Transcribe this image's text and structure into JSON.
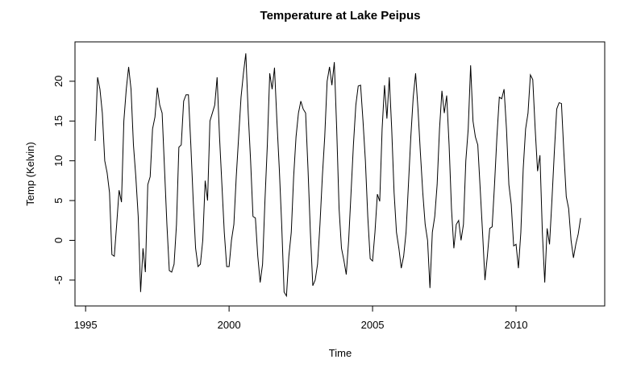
{
  "chart_data": {
    "type": "line",
    "title": "Temperature at Lake Peipus",
    "x_label": "Time",
    "y_label": "Temp (Kelvin)",
    "x": [
      1995.333,
      1995.417,
      1995.5,
      1995.583,
      1995.667,
      1995.75,
      1995.833,
      1995.917,
      1996,
      1996.083,
      1996.167,
      1996.25,
      1996.333,
      1996.417,
      1996.5,
      1996.583,
      1996.667,
      1996.75,
      1996.833,
      1996.917,
      1997,
      1997.083,
      1997.167,
      1997.25,
      1997.333,
      1997.417,
      1997.5,
      1997.583,
      1997.667,
      1997.75,
      1997.833,
      1997.917,
      1998,
      1998.083,
      1998.167,
      1998.25,
      1998.333,
      1998.417,
      1998.5,
      1998.583,
      1998.667,
      1998.75,
      1998.833,
      1998.917,
      1999,
      1999.083,
      1999.167,
      1999.25,
      1999.333,
      1999.417,
      1999.5,
      1999.583,
      1999.667,
      1999.75,
      1999.833,
      1999.917,
      2000,
      2000.083,
      2000.167,
      2000.25,
      2000.333,
      2000.417,
      2000.5,
      2000.583,
      2000.667,
      2000.75,
      2000.833,
      2000.917,
      2001,
      2001.083,
      2001.167,
      2001.25,
      2001.333,
      2001.417,
      2001.5,
      2001.583,
      2001.667,
      2001.75,
      2001.833,
      2001.917,
      2002,
      2002.083,
      2002.167,
      2002.25,
      2002.333,
      2002.417,
      2002.5,
      2002.583,
      2002.667,
      2002.75,
      2002.833,
      2002.917,
      2003,
      2003.083,
      2003.167,
      2003.25,
      2003.333,
      2003.417,
      2003.5,
      2003.583,
      2003.667,
      2003.75,
      2003.833,
      2003.917,
      2004,
      2004.083,
      2004.167,
      2004.25,
      2004.333,
      2004.417,
      2004.5,
      2004.583,
      2004.667,
      2004.75,
      2004.833,
      2004.917,
      2005,
      2005.083,
      2005.167,
      2005.25,
      2005.333,
      2005.417,
      2005.5,
      2005.583,
      2005.667,
      2005.75,
      2005.833,
      2005.917,
      2006,
      2006.083,
      2006.167,
      2006.25,
      2006.333,
      2006.417,
      2006.5,
      2006.583,
      2006.667,
      2006.75,
      2006.833,
      2006.917,
      2007,
      2007.083,
      2007.167,
      2007.25,
      2007.333,
      2007.417,
      2007.5,
      2007.583,
      2007.667,
      2007.75,
      2007.833,
      2007.917,
      2008,
      2008.083,
      2008.167,
      2008.25,
      2008.333,
      2008.417,
      2008.5,
      2008.583,
      2008.667,
      2008.75,
      2008.833,
      2008.917,
      2009,
      2009.083,
      2009.167,
      2009.25,
      2009.333,
      2009.417,
      2009.5,
      2009.583,
      2009.667,
      2009.75,
      2009.833,
      2009.917,
      2010,
      2010.083,
      2010.167,
      2010.25,
      2010.333,
      2010.417,
      2010.5,
      2010.583,
      2010.667,
      2010.75,
      2010.833,
      2010.917,
      2011,
      2011.083,
      2011.167,
      2011.25,
      2011.333,
      2011.417,
      2011.5,
      2011.583,
      2011.667,
      2011.75,
      2011.833,
      2011.917,
      2012,
      2012.083,
      2012.167,
      2012.25
    ],
    "values": [
      12.5,
      20.5,
      19,
      16,
      10,
      8.5,
      6,
      -1.8,
      -2,
      2,
      6.3,
      4.8,
      15,
      19,
      21.8,
      19,
      12,
      8,
      3,
      -6.5,
      -1,
      -4,
      7,
      8,
      14,
      15.5,
      19.2,
      17,
      16,
      9,
      2,
      -3.8,
      -4,
      -3,
      2,
      11.7,
      12,
      17.5,
      18.3,
      18.3,
      12,
      5,
      -1,
      -3.3,
      -3,
      0,
      7.5,
      5,
      15,
      16,
      17,
      20.5,
      13,
      7,
      1,
      -3.3,
      -3.3,
      0,
      2,
      8,
      13,
      18,
      21,
      23.5,
      16,
      10,
      3,
      2.8,
      -2,
      -5.3,
      -3,
      5,
      12,
      21,
      19,
      21.7,
      15,
      9,
      2,
      -6.5,
      -7,
      -2,
      1,
      8,
      13,
      16,
      17.5,
      16.5,
      16,
      9,
      1,
      -5.7,
      -5,
      -3,
      2,
      8,
      13,
      20,
      21.8,
      19.5,
      22.4,
      14,
      4,
      -1,
      -2.5,
      -4.3,
      0,
      6,
      12,
      17,
      19.4,
      19.5,
      15,
      10,
      3,
      -2.3,
      -2.6,
      1,
      5.8,
      4.9,
      14,
      19.5,
      15.3,
      20.5,
      14,
      6,
      1,
      -1,
      -3.5,
      -2,
      1,
      7,
      13,
      18,
      21,
      16.5,
      11,
      6,
      2,
      0,
      -6,
      1,
      3,
      7,
      14,
      18.8,
      16,
      18.2,
      12,
      4,
      -1,
      2,
      2.5,
      0,
      2,
      10,
      14,
      22,
      15,
      13,
      12,
      6.5,
      1,
      -5,
      -2,
      1.5,
      1.7,
      7,
      13,
      18,
      17.8,
      19,
      14,
      7,
      4.5,
      -0.7,
      -0.5,
      -3.5,
      1,
      9,
      14,
      16,
      20.8,
      20.2,
      14,
      8.7,
      10.7,
      1,
      -5.3,
      1.5,
      -0.5,
      5,
      11,
      16.5,
      17.3,
      17.2,
      11,
      5.5,
      4,
      0,
      -2.2,
      -0.5,
      0.8,
      2.8
    ],
    "color": "#000000",
    "xlim": [
      1994.63,
      2013.09
    ],
    "ylim": [
      -8.25,
      24.95
    ],
    "xticks": [
      1995,
      2000,
      2005,
      2010
    ],
    "yticks": [
      -5,
      0,
      5,
      10,
      15,
      20
    ]
  }
}
